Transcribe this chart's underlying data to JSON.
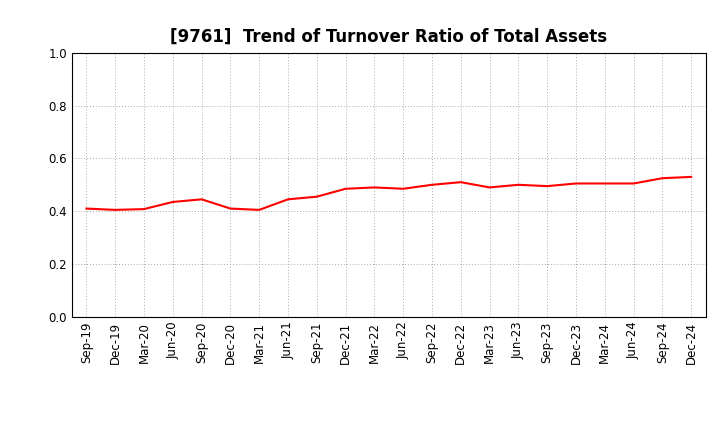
{
  "title": "[9761]  Trend of Turnover Ratio of Total Assets",
  "x_labels": [
    "Sep-19",
    "Dec-19",
    "Mar-20",
    "Jun-20",
    "Sep-20",
    "Dec-20",
    "Mar-21",
    "Jun-21",
    "Sep-21",
    "Dec-21",
    "Mar-22",
    "Jun-22",
    "Sep-22",
    "Dec-22",
    "Mar-23",
    "Jun-23",
    "Sep-23",
    "Dec-23",
    "Mar-24",
    "Jun-24",
    "Sep-24",
    "Dec-24"
  ],
  "values": [
    0.41,
    0.405,
    0.408,
    0.435,
    0.445,
    0.41,
    0.405,
    0.445,
    0.455,
    0.485,
    0.49,
    0.485,
    0.5,
    0.51,
    0.49,
    0.5,
    0.495,
    0.505,
    0.505,
    0.505,
    0.525,
    0.53
  ],
  "line_color": "#FF0000",
  "line_width": 1.5,
  "background_color": "#ffffff",
  "grid_color": "#aaaaaa",
  "ylim": [
    0.0,
    1.0
  ],
  "yticks": [
    0.0,
    0.2,
    0.4,
    0.6,
    0.8,
    1.0
  ],
  "title_fontsize": 12,
  "tick_fontsize": 8.5
}
